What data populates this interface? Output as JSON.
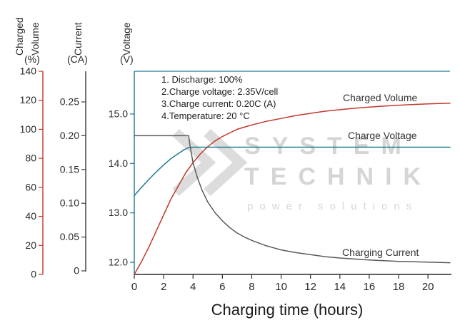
{
  "chart_data": {
    "type": "line",
    "xlabel": "Charging time (hours)",
    "grid": false,
    "legend": "inline-labels",
    "x_axis": {
      "label": "Charging time (hours)",
      "range": [
        0,
        21.5
      ],
      "ticks": [
        [
          0,
          "0"
        ],
        [
          2,
          "2"
        ],
        [
          4,
          "4"
        ],
        [
          6,
          "6"
        ],
        [
          8,
          "8"
        ],
        [
          10,
          "10"
        ],
        [
          12,
          "12"
        ],
        [
          14,
          "14"
        ],
        [
          16,
          "16"
        ],
        [
          18,
          "18"
        ],
        [
          20,
          "20"
        ]
      ]
    },
    "y_axes": {
      "volume": {
        "title_words": [
          "Charged",
          "Volume"
        ],
        "unit": "(%)",
        "range": [
          0,
          140
        ],
        "color": "#c0392b",
        "ticks": [
          [
            0,
            "0"
          ],
          [
            20,
            "20"
          ],
          [
            40,
            "40"
          ],
          [
            60,
            "60"
          ],
          [
            80,
            "80"
          ],
          [
            100,
            "100"
          ],
          [
            120,
            "120"
          ],
          [
            140,
            "140"
          ]
        ]
      },
      "current": {
        "title_words": [
          "Current"
        ],
        "unit": "(CA)",
        "range": [
          0,
          0.25
        ],
        "color": "#3a3a3a",
        "ticks": [
          [
            0,
            "0"
          ],
          [
            0.05,
            "0.05"
          ],
          [
            0.1,
            "0.10"
          ],
          [
            0.15,
            "0.15"
          ],
          [
            0.2,
            "0.20"
          ],
          [
            0.25,
            "0.25"
          ]
        ]
      },
      "voltage": {
        "title_words": [
          "Voltage"
        ],
        "unit": "(V)",
        "range": [
          12,
          15
        ],
        "color": "#20798d",
        "ticks": [
          [
            12,
            "12.0"
          ],
          [
            13,
            "13.0"
          ],
          [
            14,
            "14.0"
          ],
          [
            15,
            "15.0"
          ]
        ]
      }
    },
    "annotations": [
      "1. Discharge: 100%",
      "2.Charge voltage: 2.35V/cell",
      "3.Charge current: 0.20C (A)",
      "4.Temperature: 20 °C"
    ],
    "series": [
      {
        "name": "Charged Volume",
        "axis": "volume",
        "color": "#c0392b",
        "points": [
          [
            0,
            0
          ],
          [
            0.5,
            9
          ],
          [
            1,
            19
          ],
          [
            1.5,
            30
          ],
          [
            2,
            41
          ],
          [
            2.5,
            52
          ],
          [
            3,
            61
          ],
          [
            3.5,
            70
          ],
          [
            4,
            77
          ],
          [
            4.5,
            83
          ],
          [
            5,
            88
          ],
          [
            5.5,
            92
          ],
          [
            6,
            95
          ],
          [
            6.5,
            97.5
          ],
          [
            7,
            100
          ],
          [
            7.5,
            101.5
          ],
          [
            8,
            103
          ],
          [
            9,
            105.5
          ],
          [
            10,
            107.5
          ],
          [
            11,
            109.5
          ],
          [
            12,
            111
          ],
          [
            13,
            112.5
          ],
          [
            14,
            113.5
          ],
          [
            15,
            114.5
          ],
          [
            16,
            115.3
          ],
          [
            17,
            116
          ],
          [
            18,
            116.6
          ],
          [
            19,
            117.1
          ],
          [
            20,
            117.5
          ],
          [
            21.5,
            118
          ]
        ]
      },
      {
        "name": "Charge Voltage",
        "axis": "voltage",
        "color": "#20798d",
        "points": [
          [
            0,
            13.35
          ],
          [
            0.5,
            13.52
          ],
          [
            1,
            13.68
          ],
          [
            1.5,
            13.83
          ],
          [
            2,
            13.97
          ],
          [
            2.5,
            14.1
          ],
          [
            3,
            14.2
          ],
          [
            3.4,
            14.28
          ],
          [
            3.7,
            14.32
          ],
          [
            4,
            14.33
          ],
          [
            21.5,
            14.33
          ]
        ]
      },
      {
        "name": "Charging Current",
        "axis": "current",
        "color": "#5a5a5a",
        "points": [
          [
            0,
            0.2
          ],
          [
            3.7,
            0.2
          ],
          [
            3.8,
            0.185
          ],
          [
            4,
            0.16
          ],
          [
            4.3,
            0.138
          ],
          [
            4.6,
            0.12
          ],
          [
            5,
            0.102
          ],
          [
            5.5,
            0.086
          ],
          [
            6,
            0.074
          ],
          [
            6.5,
            0.064
          ],
          [
            7,
            0.056
          ],
          [
            7.5,
            0.05
          ],
          [
            8,
            0.045
          ],
          [
            9,
            0.037
          ],
          [
            10,
            0.031
          ],
          [
            11,
            0.027
          ],
          [
            12,
            0.024
          ],
          [
            13,
            0.021
          ],
          [
            14,
            0.019
          ],
          [
            15,
            0.0175
          ],
          [
            16,
            0.016
          ],
          [
            17,
            0.015
          ],
          [
            18,
            0.014
          ],
          [
            19,
            0.0135
          ],
          [
            20,
            0.013
          ],
          [
            21.5,
            0.012
          ]
        ]
      }
    ]
  },
  "watermark": {
    "line1": "SYSTEM",
    "line2": "TECHNIK",
    "tagline": "power solutions"
  }
}
